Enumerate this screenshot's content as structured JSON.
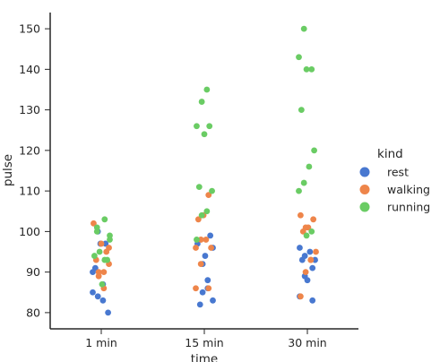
{
  "chart_data": {
    "type": "scatter",
    "subtype": "strip",
    "title": "",
    "xlabel": "time",
    "ylabel": "pulse",
    "categories": [
      "1 min",
      "15 min",
      "30 min"
    ],
    "yticks": [
      80,
      90,
      100,
      110,
      120,
      130,
      140,
      150
    ],
    "ylim": [
      76,
      154
    ],
    "grid": false,
    "legend": {
      "title": "kind",
      "placement": "right"
    },
    "series": [
      {
        "name": "rest",
        "color": "#4878d0",
        "values": [
          [
            85,
            84,
            83,
            80,
            91,
            97,
            97,
            90,
            100,
            87
          ],
          [
            85,
            86,
            83,
            82,
            94,
            99,
            97,
            92,
            88,
            96
          ],
          [
            91,
            84,
            94,
            95,
            93,
            93,
            88,
            83,
            96,
            89
          ]
        ]
      },
      {
        "name": "walking",
        "color": "#ee854a",
        "values": [
          [
            90,
            86,
            92,
            93,
            97,
            95,
            102,
            89,
            90,
            96
          ],
          [
            86,
            86,
            92,
            98,
            96,
            103,
            104,
            109,
            96,
            98
          ],
          [
            84,
            90,
            93,
            95,
            100,
            101,
            103,
            104,
            101,
            93
          ]
        ]
      },
      {
        "name": "running",
        "color": "#6acc64",
        "values": [
          [
            93,
            98,
            100,
            87,
            93,
            94,
            95,
            103,
            99,
            101
          ],
          [
            98,
            104,
            105,
            110,
            111,
            124,
            126,
            126,
            132,
            135
          ],
          [
            99,
            100,
            110,
            112,
            116,
            120,
            130,
            140,
            140,
            143,
            150
          ]
        ]
      }
    ]
  }
}
